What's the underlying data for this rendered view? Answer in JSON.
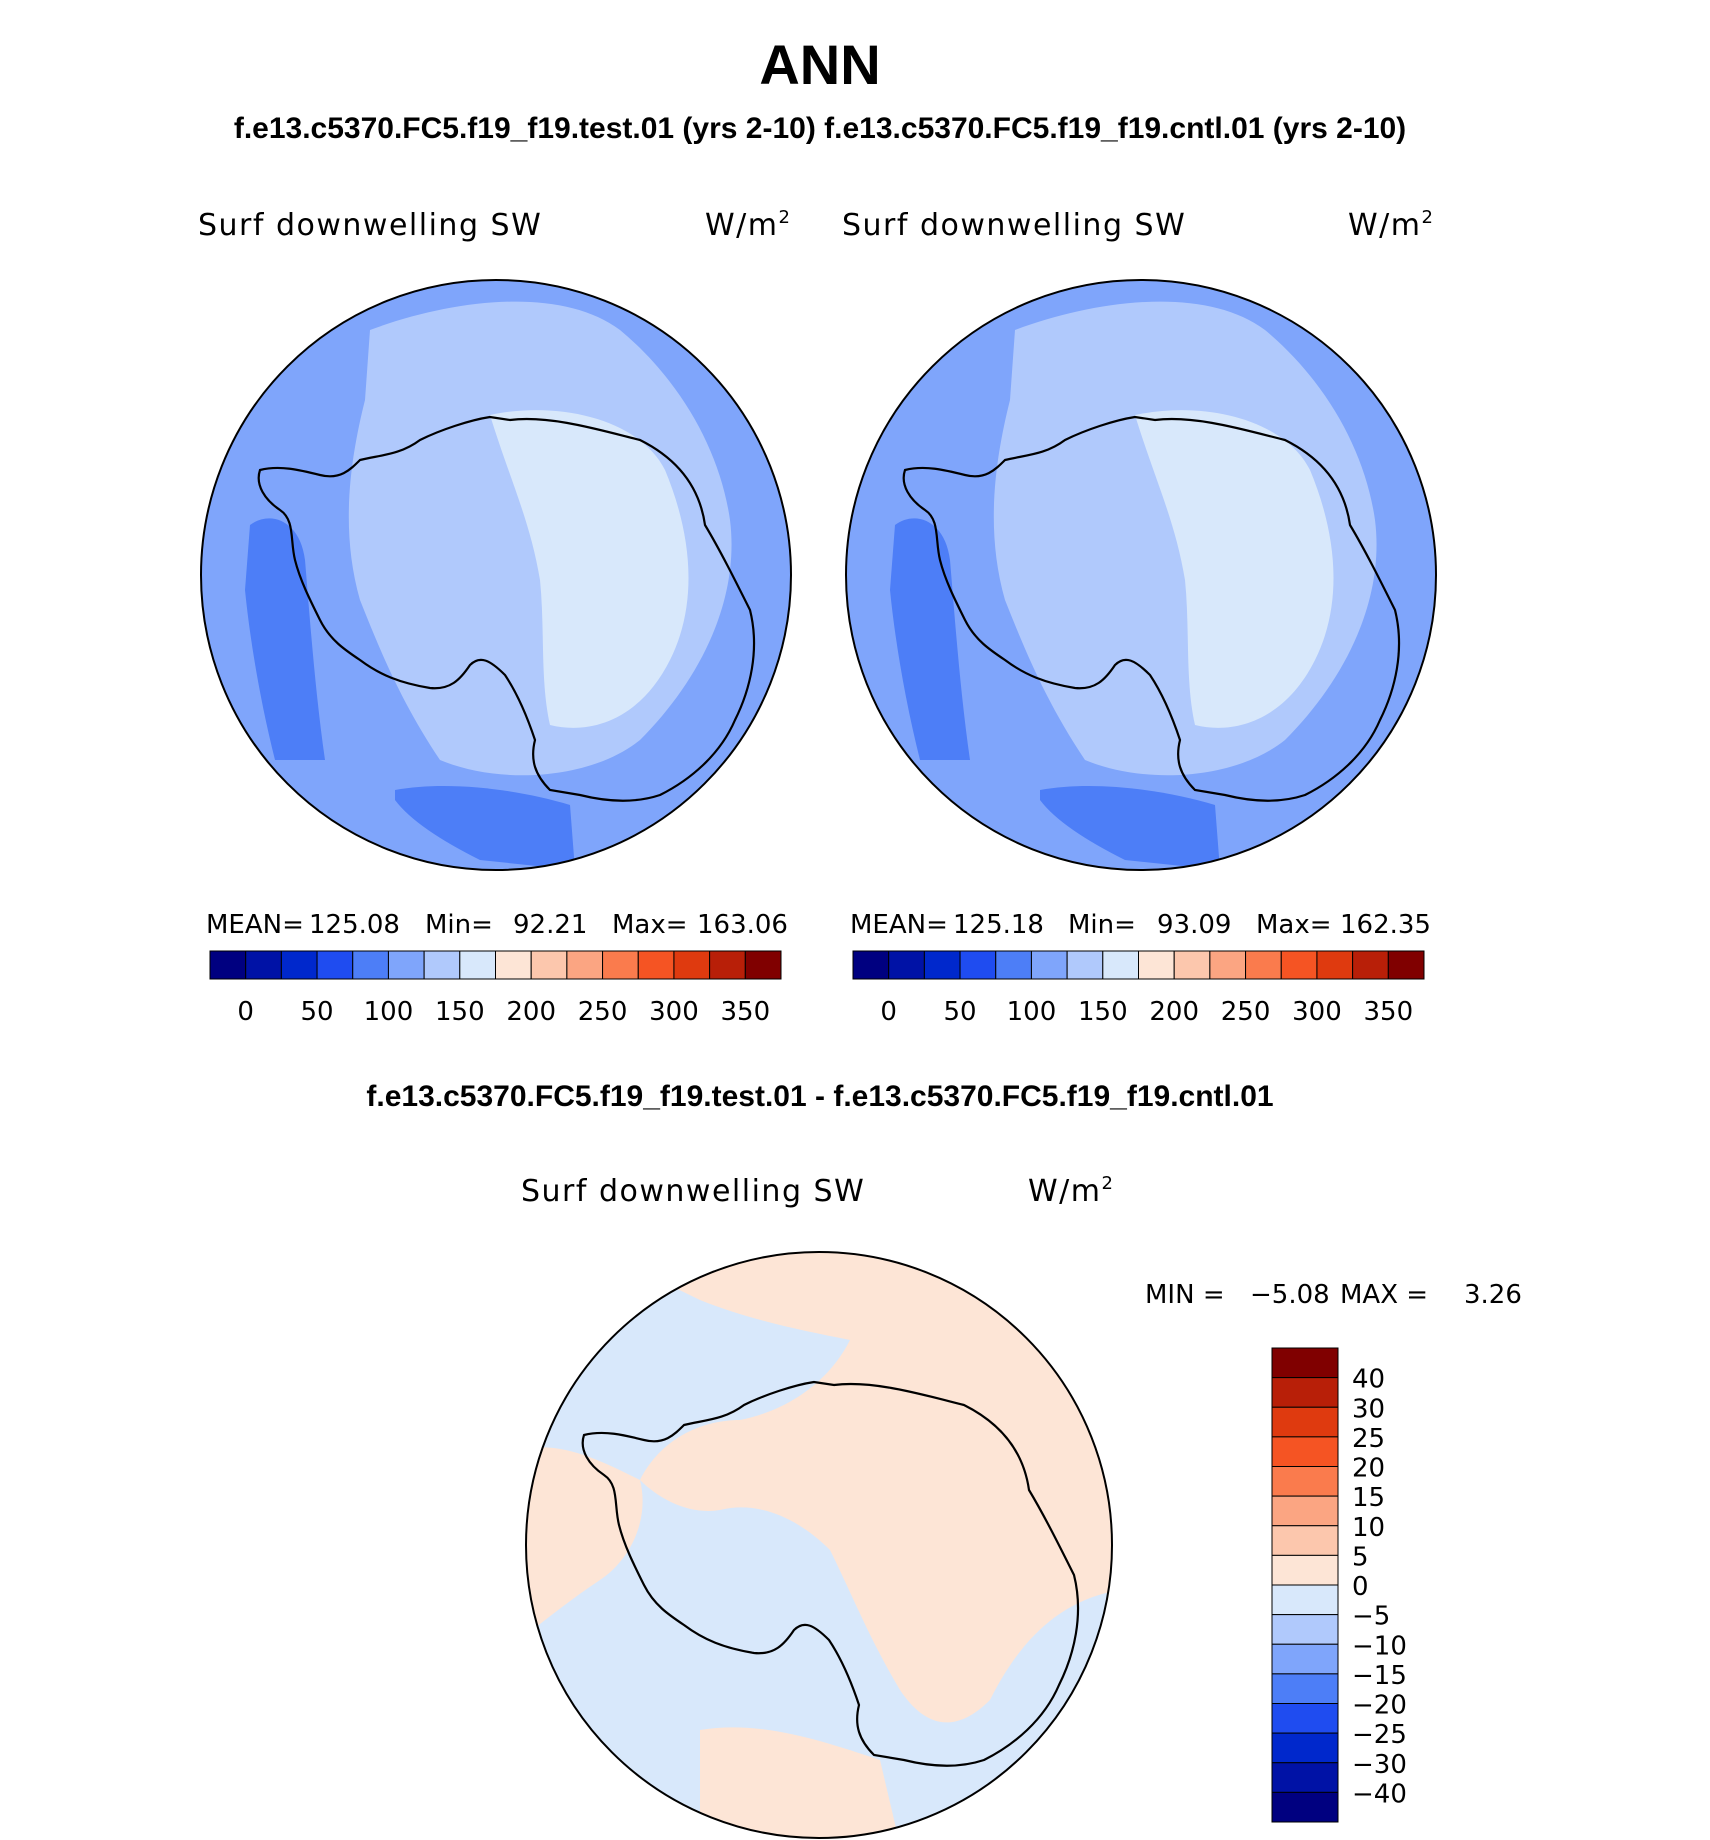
{
  "title": "ANN",
  "subtitle": "f.e13.c5370.FC5.f19_f19.test.01 (yrs 2-10) f.e13.c5370.FC5.f19_f19.cntl.01 (yrs 2-10)",
  "panels": [
    {
      "variable": "Surf downwelling SW",
      "units": "W/m",
      "units_sup": "2",
      "stats": {
        "mean_label": "MEAN=",
        "mean": "125.08",
        "min_label": "Min=",
        "min": "92.21",
        "max_label": "Max=",
        "max": "163.06"
      }
    },
    {
      "variable": "Surf downwelling SW",
      "units": "W/m",
      "units_sup": "2",
      "stats": {
        "mean_label": "MEAN=",
        "mean": "125.18",
        "min_label": "Min=",
        "min": "93.09",
        "max_label": "Max=",
        "max": "162.35"
      }
    }
  ],
  "abs_colorbar": {
    "colors": [
      "#000080",
      "#0012a6",
      "#0028cc",
      "#1f4cf0",
      "#4d7ef7",
      "#7fa5fb",
      "#b0c9fc",
      "#d8e8fb",
      "#fde5d6",
      "#fcc7ad",
      "#fba582",
      "#fa7b4d",
      "#f55423",
      "#df3a0f",
      "#b81f08",
      "#800000"
    ],
    "labels": [
      "0",
      "50",
      "100",
      "150",
      "200",
      "250",
      "300",
      "350"
    ]
  },
  "diff": {
    "title": "f.e13.c5370.FC5.f19_f19.test.01 - f.e13.c5370.FC5.f19_f19.cntl.01",
    "variable": "Surf downwelling SW",
    "units": "W/m",
    "units_sup": "2",
    "min_label": "MIN =",
    "min": "−5.08",
    "max_label": "MAX =",
    "max": "3.26",
    "colorbar": {
      "colors_top_to_bottom": [
        "#800000",
        "#b81f08",
        "#df3a0f",
        "#f55423",
        "#fa7b4d",
        "#fba582",
        "#fcc7ad",
        "#fde5d6",
        "#d8e8fb",
        "#b0c9fc",
        "#7fa5fb",
        "#4d7ef7",
        "#1f4cf0",
        "#0028cc",
        "#0012a6",
        "#000080"
      ],
      "labels": [
        "40",
        "30",
        "25",
        "20",
        "15",
        "10",
        "5",
        "0",
        "−5",
        "−10",
        "−15",
        "−20",
        "−25",
        "−30",
        "−40"
      ]
    }
  },
  "fills": {
    "ocean": "#7fa5fb",
    "ring": "#b0c9fc",
    "interior": "#d8e8fb",
    "band": "#4d7ef7",
    "diff_pos": "#fde5d6",
    "diff_neg": "#d8e8fb"
  }
}
